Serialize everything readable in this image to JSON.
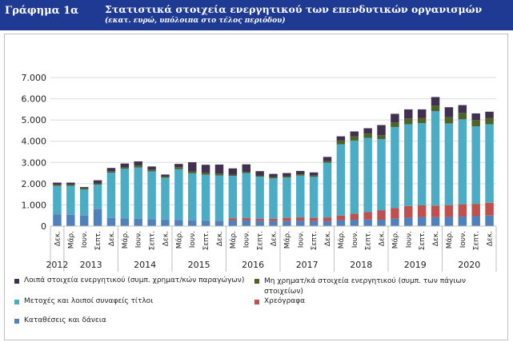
{
  "header": {
    "label": "Γράφημα 1α",
    "title": "Στατιστικά στοιχεία ενεργητικού των επενδυτικών οργανισμών",
    "subtitle": "(εκατ. ευρώ, υπόλοιπα στο τέλος περιόδου)"
  },
  "chart_data": {
    "type": "bar",
    "stacked": true,
    "ylim": [
      0,
      7000
    ],
    "yticks": [
      "0",
      "1.000",
      "2.000",
      "3.000",
      "4.000",
      "5.000",
      "6.000",
      "7.000"
    ],
    "grid": true,
    "legend_position": "bottom",
    "categories": [
      "Δεκ.",
      "Μάρ.",
      "Ιουν.",
      "Σεπτ.",
      "Δεκ.",
      "Μάρ.",
      "Ιουν.",
      "Σεπτ.",
      "Δεκ.",
      "Μάρ.",
      "Ιουν.",
      "Σεπτ.",
      "Δεκ.",
      "Μάρ.",
      "Ιουν.",
      "Σεπτ.",
      "Δεκ.",
      "Μάρ.",
      "Ιουν.",
      "Σεπτ.",
      "Δεκ.",
      "Μάρ.",
      "Ιουν.",
      "Σεπτ.",
      "Δεκ.",
      "Μάρ.",
      "Ιουν.",
      "Σεπτ.",
      "Δεκ.",
      "Μάρ.",
      "Ιουν.",
      "Σεπτ.",
      "Δεκ."
    ],
    "year_labels": [
      "2012",
      "2013",
      "2014",
      "2015",
      "2016",
      "2017",
      "2018",
      "2019",
      "2020"
    ],
    "series": [
      {
        "name": "Καταθέσεις και δάνεια",
        "color": "#4f81bd",
        "values": [
          550,
          530,
          500,
          800,
          380,
          360,
          350,
          320,
          300,
          290,
          270,
          260,
          250,
          270,
          280,
          250,
          240,
          240,
          260,
          240,
          230,
          280,
          300,
          310,
          300,
          350,
          400,
          430,
          420,
          430,
          450,
          470,
          500
        ]
      },
      {
        "name": "Χρεόγραφα",
        "color": "#c0504d",
        "values": [
          10,
          10,
          10,
          10,
          10,
          10,
          10,
          10,
          10,
          10,
          10,
          10,
          10,
          100,
          100,
          100,
          110,
          150,
          150,
          150,
          180,
          220,
          280,
          350,
          450,
          500,
          550,
          550,
          550,
          560,
          580,
          580,
          600
        ]
      },
      {
        "name": "Μετοχές και λοιποί συναφείς τίτλοι",
        "color": "#4bacc6",
        "values": [
          1330,
          1350,
          1220,
          1140,
          2130,
          2330,
          2400,
          2250,
          1970,
          2380,
          2210,
          2150,
          2130,
          2000,
          2120,
          1980,
          1900,
          1900,
          1970,
          1930,
          2580,
          3350,
          3450,
          3500,
          3350,
          3820,
          3850,
          3870,
          4450,
          3850,
          4000,
          3650,
          3700
        ]
      },
      {
        "name": "Μη χρηματ/κά στοιχεία ενεργητικού (συμπ. των πάγιων στοιχείων)",
        "color": "#4f6228",
        "values": [
          60,
          60,
          60,
          60,
          70,
          70,
          90,
          80,
          50,
          100,
          90,
          100,
          90,
          50,
          60,
          60,
          60,
          60,
          60,
          60,
          70,
          180,
          200,
          200,
          180,
          220,
          270,
          250,
          260,
          300,
          300,
          300,
          300
        ]
      },
      {
        "name": "Λοιπά στοιχεία ενεργητικού (συμπ. χρηματ/κών παραγώγων)",
        "color": "#403151",
        "values": [
          100,
          100,
          50,
          150,
          150,
          180,
          200,
          150,
          100,
          150,
          430,
          370,
          420,
          300,
          350,
          200,
          150,
          150,
          160,
          150,
          200,
          200,
          230,
          250,
          480,
          400,
          430,
          400,
          400,
          460,
          370,
          310,
          290
        ]
      }
    ]
  }
}
